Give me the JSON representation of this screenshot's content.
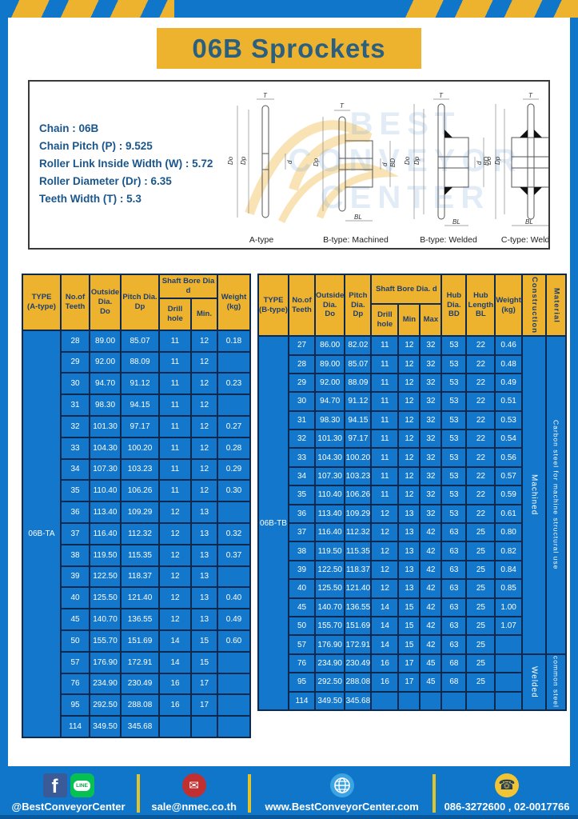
{
  "title": "06B Sprockets",
  "specs": {
    "lines": [
      "Chain : 06B",
      "Chain Pitch (P) : 9.525",
      "Roller Link Inside Width (W) : 5.72",
      "Roller Diameter (Dr) : 6.35",
      "Teeth Width (T) : 5.3"
    ]
  },
  "watermark": {
    "line1": "BEST",
    "line2": "CONVEYOR",
    "line3": "CENTER"
  },
  "diagrams": {
    "captions": [
      "A-type",
      "B-type: Machined",
      "B-type: Welded",
      "C-type: Welded"
    ],
    "dim_labels": {
      "t": "T",
      "do": "Do",
      "dp": "Dp",
      "d": "d",
      "bd": "BD",
      "bl": "BL"
    }
  },
  "left_table": {
    "header": {
      "type": "TYPE\n(A-type)",
      "teeth": "No.of\nTeeth",
      "outside": "Outside\nDia.\nDo",
      "pitch": "Pitch Dia.\nDp",
      "shaft": "Shaft Bore Dia d",
      "drill": "Drill hole",
      "min": "Min.",
      "weight": "Weight\n(kg)"
    },
    "type_label": "06B-TA",
    "rows": [
      [
        "28",
        "89.00",
        "85.07",
        "11",
        "12",
        "0.18"
      ],
      [
        "29",
        "92.00",
        "88.09",
        "11",
        "12",
        ""
      ],
      [
        "30",
        "94.70",
        "91.12",
        "11",
        "12",
        "0.23"
      ],
      [
        "31",
        "98.30",
        "94.15",
        "11",
        "12",
        ""
      ],
      [
        "32",
        "101.30",
        "97.17",
        "11",
        "12",
        "0.27"
      ],
      [
        "33",
        "104.30",
        "100.20",
        "11",
        "12",
        "0.28"
      ],
      [
        "34",
        "107.30",
        "103.23",
        "11",
        "12",
        "0.29"
      ],
      [
        "35",
        "110.40",
        "106.26",
        "11",
        "12",
        "0.30"
      ],
      [
        "36",
        "113.40",
        "109.29",
        "12",
        "13",
        ""
      ],
      [
        "37",
        "116.40",
        "112.32",
        "12",
        "13",
        "0.32"
      ],
      [
        "38",
        "119.50",
        "115.35",
        "12",
        "13",
        "0.37"
      ],
      [
        "39",
        "122.50",
        "118.37",
        "12",
        "13",
        ""
      ],
      [
        "40",
        "125.50",
        "121.40",
        "12",
        "13",
        "0.40"
      ],
      [
        "45",
        "140.70",
        "136.55",
        "12",
        "13",
        "0.49"
      ],
      [
        "50",
        "155.70",
        "151.69",
        "14",
        "15",
        "0.60"
      ],
      [
        "57",
        "176.90",
        "172.91",
        "14",
        "15",
        ""
      ],
      [
        "76",
        "234.90",
        "230.49",
        "16",
        "17",
        ""
      ],
      [
        "95",
        "292.50",
        "288.08",
        "16",
        "17",
        ""
      ],
      [
        "114",
        "349.50",
        "345.68",
        "",
        "",
        ""
      ]
    ]
  },
  "right_table": {
    "header": {
      "type": "TYPE\n(B-type)",
      "teeth": "No.of\nTeeth",
      "outside": "Outside\nDia.\nDo",
      "pitch": "Pitch\nDia.\nDp",
      "shaft": "Shaft Bore Dia. d",
      "drill": "Drill hole",
      "min": "Min",
      "max": "Max",
      "hub_dia": "Hub\nDia.\nBD",
      "hub_len": "Hub\nLength\nBL",
      "weight": "Weight\n(kg)",
      "construction": "Construction",
      "material": "Material"
    },
    "type_label": "06B-TB",
    "rows": [
      [
        "27",
        "86.00",
        "82.02",
        "11",
        "12",
        "32",
        "53",
        "22",
        "0.46"
      ],
      [
        "28",
        "89.00",
        "85.07",
        "11",
        "12",
        "32",
        "53",
        "22",
        "0.48"
      ],
      [
        "29",
        "92.00",
        "88.09",
        "11",
        "12",
        "32",
        "53",
        "22",
        "0.49"
      ],
      [
        "30",
        "94.70",
        "91.12",
        "11",
        "12",
        "32",
        "53",
        "22",
        "0.51"
      ],
      [
        "31",
        "98.30",
        "94.15",
        "11",
        "12",
        "32",
        "53",
        "22",
        "0.53"
      ],
      [
        "32",
        "101.30",
        "97.17",
        "11",
        "12",
        "32",
        "53",
        "22",
        "0.54"
      ],
      [
        "33",
        "104.30",
        "100.20",
        "11",
        "12",
        "32",
        "53",
        "22",
        "0.56"
      ],
      [
        "34",
        "107.30",
        "103.23",
        "11",
        "12",
        "32",
        "53",
        "22",
        "0.57"
      ],
      [
        "35",
        "110.40",
        "106.26",
        "11",
        "12",
        "32",
        "53",
        "22",
        "0.59"
      ],
      [
        "36",
        "113.40",
        "109.29",
        "12",
        "13",
        "32",
        "53",
        "22",
        "0.61"
      ],
      [
        "37",
        "116.40",
        "112.32",
        "12",
        "13",
        "42",
        "63",
        "25",
        "0.80"
      ],
      [
        "38",
        "119.50",
        "115.35",
        "12",
        "13",
        "42",
        "63",
        "25",
        "0.82"
      ],
      [
        "39",
        "122.50",
        "118.37",
        "12",
        "13",
        "42",
        "63",
        "25",
        "0.84"
      ],
      [
        "40",
        "125.50",
        "121.40",
        "12",
        "13",
        "42",
        "63",
        "25",
        "0.85"
      ],
      [
        "45",
        "140.70",
        "136.55",
        "14",
        "15",
        "42",
        "63",
        "25",
        "1.00"
      ],
      [
        "50",
        "155.70",
        "151.69",
        "14",
        "15",
        "42",
        "63",
        "25",
        "1.07"
      ],
      [
        "57",
        "176.90",
        "172.91",
        "14",
        "15",
        "42",
        "63",
        "25",
        ""
      ],
      [
        "76",
        "234.90",
        "230.49",
        "16",
        "17",
        "45",
        "68",
        "25",
        ""
      ],
      [
        "95",
        "292.50",
        "288.08",
        "16",
        "17",
        "45",
        "68",
        "25",
        ""
      ],
      [
        "114",
        "349.50",
        "345.68",
        "",
        "",
        "",
        "",
        "",
        ""
      ]
    ],
    "construction_spans": [
      {
        "label": "Machined",
        "span": 17
      },
      {
        "label": "Welded",
        "span": 3
      }
    ],
    "material_spans": [
      {
        "label": "Carbon steel for machine structural use",
        "span": 17
      },
      {
        "label": "common steel",
        "span": 3
      }
    ]
  },
  "footer": {
    "social_handle": "@BestConveyorCenter",
    "email": "sale@nmec.co.th",
    "website": "www.BestConveyorCenter.com",
    "phones": "086-3272600 , 02-0017766",
    "facebook_glyph": "f",
    "line_glyph": "LINE",
    "mail_glyph": "✉",
    "phone_glyph": "☎"
  },
  "colors": {
    "blue": "#1076c9",
    "cell_blue": "#1377cb",
    "yellow": "#edb32f",
    "border_navy": "#0d2950",
    "header_text": "#1f3e6d",
    "title_text": "#2b5f7f",
    "facebook": "#3a5a98",
    "line_green": "#06c152",
    "mail_red": "#c13030",
    "phone_yellow": "#f0c433"
  }
}
